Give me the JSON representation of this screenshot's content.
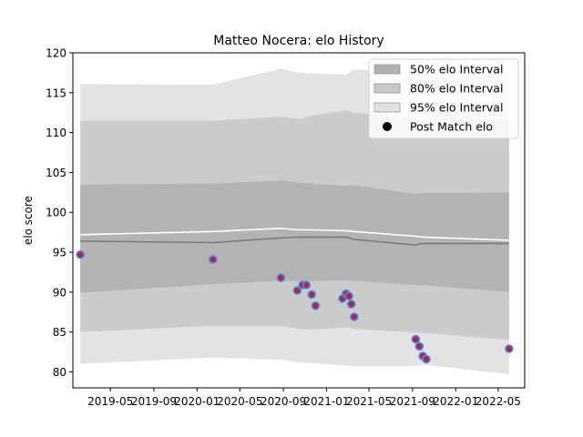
{
  "chart_data": {
    "type": "line",
    "title": "Matteo Nocera: elo History",
    "xlabel": "",
    "ylabel": "elo score",
    "ylim": [
      78,
      120
    ],
    "xlim": [
      "2019-01-15",
      "2022-07-15"
    ],
    "y_ticks": [
      80,
      85,
      90,
      95,
      100,
      105,
      110,
      115,
      120
    ],
    "x_ticks": [
      {
        "date": "2019-05-01",
        "label": "2019-05"
      },
      {
        "date": "2019-09-01",
        "label": "2019-09"
      },
      {
        "date": "2020-01-01",
        "label": "2020-01"
      },
      {
        "date": "2020-05-01",
        "label": "2020-05"
      },
      {
        "date": "2020-09-01",
        "label": "2020-09"
      },
      {
        "date": "2021-01-01",
        "label": "2021-01"
      },
      {
        "date": "2021-05-01",
        "label": "2021-05"
      },
      {
        "date": "2021-09-01",
        "label": "2021-09"
      },
      {
        "date": "2022-01-01",
        "label": "2022-01"
      },
      {
        "date": "2022-05-01",
        "label": "2022-05"
      }
    ],
    "grid": false,
    "legend": {
      "position": "top-right",
      "entries": [
        {
          "label": "50% elo Interval",
          "kind": "band",
          "color": "#b0b0b0"
        },
        {
          "label": "80% elo Interval",
          "kind": "band",
          "color": "#c8c8c8"
        },
        {
          "label": "95% elo Interval",
          "kind": "band",
          "color": "#e2e2e2"
        },
        {
          "label": "Post Match elo",
          "kind": "marker",
          "color": "#000000"
        }
      ]
    },
    "colors": {
      "band_50": "#b3b3b3",
      "band_80": "#cbcbcb",
      "band_95": "#e3e3e3",
      "mean_line": "#ffffff",
      "median_line": "#7a7a7a",
      "marker_fill": "#c2185b",
      "marker_edge": "#3a9ad9"
    },
    "x": [
      "2019-02-05",
      "2020-02-15",
      "2020-08-25",
      "2020-10-15",
      "2020-11-20",
      "2021-02-25",
      "2021-03-20",
      "2021-09-10",
      "2021-10-01",
      "2022-06-01"
    ],
    "band_95": {
      "upper": [
        116.1,
        116.0,
        118.0,
        117.5,
        117.4,
        117.3,
        117.9,
        117.8,
        117.8,
        117.9
      ],
      "lower": [
        81.0,
        81.8,
        81.5,
        81.2,
        81.1,
        80.8,
        80.7,
        80.7,
        80.9,
        79.7
      ]
    },
    "band_80": {
      "upper": [
        111.5,
        111.5,
        112.0,
        111.7,
        112.1,
        112.8,
        112.5,
        111.8,
        111.8,
        111.8
      ],
      "lower": [
        85.0,
        85.8,
        85.8,
        85.4,
        85.3,
        85.6,
        85.4,
        84.9,
        84.9,
        84.0
      ]
    },
    "band_50": {
      "upper": [
        103.5,
        103.6,
        104.0,
        103.7,
        103.6,
        103.3,
        103.4,
        102.3,
        102.4,
        102.5
      ],
      "lower": [
        89.9,
        91.0,
        91.4,
        91.4,
        91.4,
        91.5,
        91.4,
        90.9,
        90.9,
        90.0
      ]
    },
    "mean_line": [
      97.2,
      97.6,
      98.0,
      97.8,
      97.8,
      97.7,
      97.6,
      97.0,
      96.9,
      96.5
    ],
    "median_line": [
      96.4,
      96.2,
      96.8,
      96.9,
      96.9,
      96.9,
      96.6,
      95.9,
      96.1,
      96.1
    ],
    "series": [
      {
        "name": "Post Match elo",
        "points": [
          {
            "x": "2019-02-05",
            "y": 94.7
          },
          {
            "x": "2020-02-15",
            "y": 94.1
          },
          {
            "x": "2020-08-25",
            "y": 91.8
          },
          {
            "x": "2020-10-10",
            "y": 90.2
          },
          {
            "x": "2020-10-25",
            "y": 90.9
          },
          {
            "x": "2020-11-05",
            "y": 90.9
          },
          {
            "x": "2020-11-20",
            "y": 89.7
          },
          {
            "x": "2020-12-01",
            "y": 88.3
          },
          {
            "x": "2021-02-15",
            "y": 89.2
          },
          {
            "x": "2021-02-25",
            "y": 89.8
          },
          {
            "x": "2021-03-05",
            "y": 89.5
          },
          {
            "x": "2021-03-12",
            "y": 88.5
          },
          {
            "x": "2021-03-20",
            "y": 86.9
          },
          {
            "x": "2021-09-10",
            "y": 84.1
          },
          {
            "x": "2021-09-20",
            "y": 83.2
          },
          {
            "x": "2021-09-30",
            "y": 82.0
          },
          {
            "x": "2021-10-10",
            "y": 81.6
          },
          {
            "x": "2022-06-01",
            "y": 82.9
          }
        ]
      }
    ]
  }
}
